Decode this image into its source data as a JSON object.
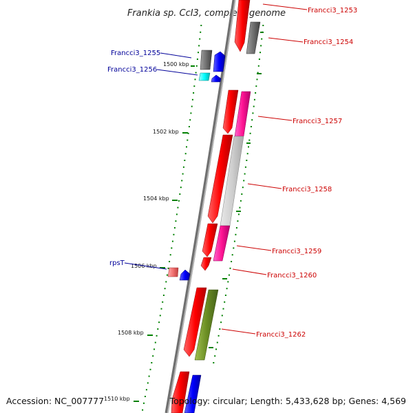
{
  "title": "Frankia sp. CcI3, complete genome",
  "accession": "Accession: NC_007777",
  "topology": "Topology: circular; Length: 5,433,628 bp; Genes: 4,569",
  "colors": {
    "backbone": "#808080",
    "tick": "#008000",
    "label_red": "#cc0000",
    "label_blue": "#000099",
    "leader_red": "#cc0000",
    "leader_blue": "#000099"
  },
  "ticks": [
    "1500 kbp",
    "1502 kbp",
    "1504 kbp",
    "1506 kbp",
    "1508 kbp",
    "1510 kbp"
  ],
  "genes": [
    {
      "label": "Francci3_1253",
      "color": "red",
      "strand": "+"
    },
    {
      "label": "Francci3_1254",
      "color": "gray",
      "strand": "+"
    },
    {
      "label": "Francci3_1255",
      "color": "gray",
      "strand": "-"
    },
    {
      "label": "Francci3_1256",
      "color": "cyan",
      "strand": "-"
    },
    {
      "label": "Francci3_1257",
      "color": "magenta",
      "strand": "+"
    },
    {
      "label": "Francci3_1258",
      "color": "light-gray",
      "strand": "+"
    },
    {
      "label": "Francci3_1259",
      "color": "magenta",
      "strand": "+"
    },
    {
      "label": "Francci3_1260",
      "color": "red",
      "strand": "+"
    },
    {
      "label": "rpsT",
      "color": "pink",
      "strand": "-"
    },
    {
      "label": "Francci3_1262",
      "color": "olive",
      "strand": "+"
    }
  ]
}
